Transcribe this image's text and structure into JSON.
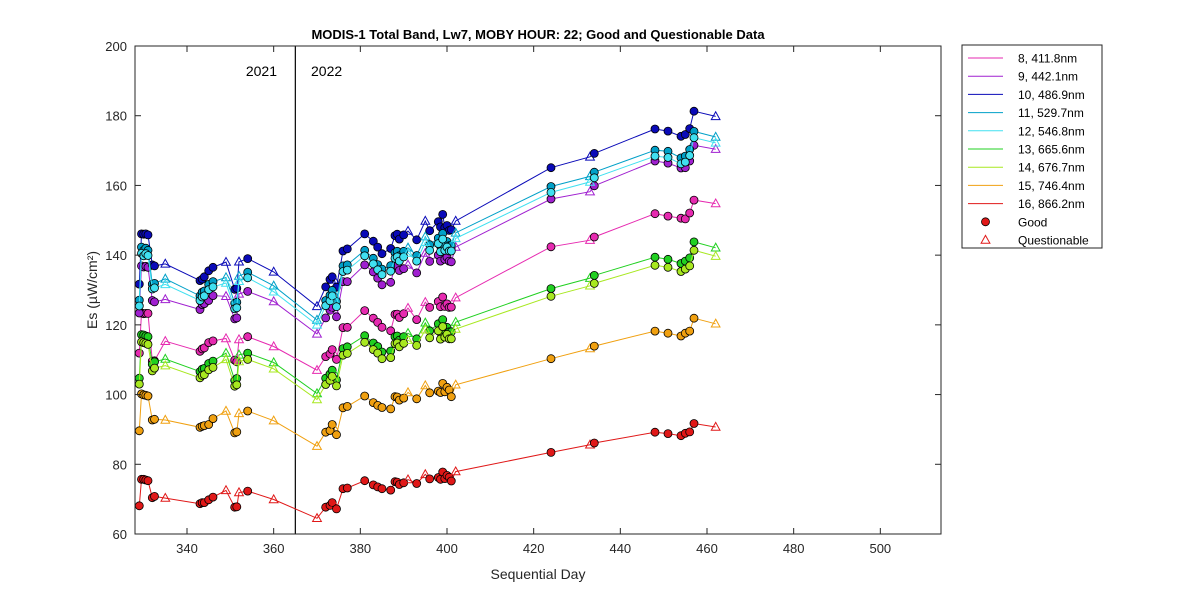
{
  "chart_data": {
    "type": "line",
    "title": "MODIS-1 Total Band,  Lw7, MOBY HOUR: 22;  Good and Questionable Data",
    "xlabel": "Sequential Day",
    "ylabel": "Es (µW/cm²)",
    "xlim": [
      328,
      514
    ],
    "ylim": [
      60,
      200
    ],
    "xticks": [
      340,
      360,
      380,
      400,
      420,
      440,
      460,
      480,
      500
    ],
    "yticks": [
      60,
      80,
      100,
      120,
      140,
      160,
      180,
      200
    ],
    "xtick_labels": [
      "340",
      "360",
      "380",
      "400",
      "420",
      "440",
      "460",
      "480",
      "500"
    ],
    "ytick_labels": [
      "60",
      "80",
      "100",
      "120",
      "140",
      "160",
      "180",
      "200"
    ],
    "grid": false,
    "legend_position": "outside-right",
    "year_divider": {
      "x": 365,
      "left_label": "2021",
      "right_label": "2022"
    },
    "x": [
      329,
      329.5,
      330,
      330.5,
      331,
      332,
      332.5,
      335,
      343,
      343.5,
      344,
      345,
      346,
      349,
      351,
      351.5,
      352,
      354,
      360,
      370,
      372,
      373,
      373.5,
      374,
      374.5,
      376,
      377,
      381,
      383,
      384,
      385,
      387,
      388,
      388.5,
      389,
      390,
      391,
      393,
      395,
      396,
      398,
      398.5,
      399,
      399.5,
      400,
      400.5,
      401,
      402,
      424,
      433,
      434,
      448,
      451,
      454,
      455,
      456,
      457,
      462
    ],
    "questionable_x": [
      335,
      349,
      352,
      360,
      370,
      374,
      391,
      395,
      402,
      433,
      462
    ],
    "series": [
      {
        "name": "8, 411.8nm",
        "color": "#e62ab0",
        "values": [
          111.9,
          123.4,
          123.2,
          123.3,
          123.3,
          109.6,
          109.7,
          115.3,
          112.4,
          113.1,
          113.4,
          114.9,
          115.4,
          116.1,
          109.9,
          109.4,
          115.8,
          116.6,
          113.8,
          107.0,
          110.9,
          111.7,
          112.9,
          111.5,
          110.1,
          119.2,
          119.3,
          124.1,
          121.9,
          120.7,
          119.3,
          118.3,
          123.0,
          123.1,
          122.1,
          123.2,
          124.8,
          121.5,
          126.5,
          125.0,
          126.7,
          125.2,
          128.0,
          125.3,
          126.0,
          125.0,
          125.1,
          127.8,
          142.4,
          144.3,
          145.2,
          151.9,
          151.2,
          150.6,
          150.4,
          152.1,
          155.8,
          154.8
        ]
      },
      {
        "name": "9, 442.1nm",
        "color": "#a020d0",
        "values": [
          123.4,
          136.9,
          136.6,
          136.8,
          136.5,
          127.0,
          126.6,
          127.3,
          124.4,
          125.8,
          126.1,
          127.0,
          128.4,
          128.2,
          121.7,
          122.0,
          128.9,
          129.6,
          126.7,
          117.4,
          122.0,
          124.2,
          125.0,
          124.2,
          122.3,
          132.4,
          132.4,
          137.2,
          135.2,
          133.4,
          131.5,
          132.2,
          136.8,
          136.9,
          135.6,
          136.1,
          137.2,
          134.9,
          140.6,
          138.2,
          140.0,
          138.3,
          141.5,
          138.8,
          139.4,
          138.3,
          138.1,
          142.3,
          156.1,
          158.2,
          159.9,
          167.0,
          166.4,
          165.0,
          165.1,
          167.0,
          171.5,
          170.4
        ]
      },
      {
        "name": "10, 486.9nm",
        "color": "#0a0ab8",
        "values": [
          131.7,
          146.1,
          146.0,
          146.1,
          145.8,
          137.2,
          136.9,
          137.5,
          132.7,
          133.1,
          133.8,
          135.5,
          136.5,
          138.0,
          130.2,
          130.5,
          138.1,
          139.0,
          135.2,
          125.3,
          130.9,
          133.0,
          133.8,
          132.9,
          130.8,
          141.2,
          141.8,
          146.1,
          144.0,
          142.3,
          140.4,
          141.9,
          145.6,
          146.0,
          144.6,
          145.8,
          146.9,
          144.4,
          149.8,
          147.0,
          149.6,
          148.1,
          151.7,
          147.9,
          148.5,
          147.1,
          147.3,
          149.8,
          165.1,
          168.2,
          169.2,
          176.2,
          175.6,
          174.1,
          174.6,
          176.3,
          181.3,
          179.8
        ]
      },
      {
        "name": "11, 529.7nm",
        "color": "#00a0c8",
        "values": [
          127.1,
          142.3,
          141.4,
          142.0,
          141.4,
          131.7,
          131.9,
          133.2,
          128.3,
          129.4,
          129.7,
          131.6,
          132.4,
          133.6,
          126.2,
          126.5,
          134.0,
          135.1,
          131.2,
          121.4,
          127.0,
          128.5,
          129.9,
          128.8,
          126.7,
          136.9,
          137.2,
          141.4,
          139.1,
          137.3,
          136.0,
          137.0,
          140.7,
          141.1,
          139.8,
          141.1,
          142.1,
          139.9,
          145.3,
          143.0,
          144.9,
          142.6,
          146.2,
          143.0,
          143.9,
          142.7,
          142.8,
          146.4,
          159.7,
          162.6,
          163.8,
          170.1,
          169.8,
          167.9,
          168.4,
          170.3,
          175.5,
          173.9
        ]
      },
      {
        "name": "12, 546.8nm",
        "color": "#40e0f0",
        "values": [
          125.4,
          140.5,
          139.8,
          140.4,
          139.9,
          130.3,
          130.6,
          131.6,
          127.0,
          128.0,
          128.3,
          130.1,
          130.9,
          132.0,
          124.6,
          124.9,
          132.5,
          133.5,
          129.5,
          120.0,
          125.5,
          126.9,
          128.3,
          127.2,
          125.2,
          135.3,
          135.7,
          139.8,
          137.5,
          135.8,
          134.4,
          135.4,
          139.1,
          139.5,
          138.3,
          139.5,
          140.6,
          138.3,
          143.7,
          141.4,
          143.3,
          141.0,
          144.6,
          141.4,
          142.3,
          141.2,
          141.2,
          144.8,
          158.0,
          161.0,
          162.2,
          168.4,
          168.0,
          166.2,
          166.7,
          168.6,
          173.7,
          172.2
        ]
      },
      {
        "name": "13, 665.6nm",
        "color": "#20d020",
        "values": [
          104.7,
          117.2,
          117.1,
          116.8,
          116.6,
          108.7,
          109.4,
          110.2,
          106.6,
          107.3,
          107.5,
          108.9,
          109.6,
          111.9,
          104.1,
          104.6,
          111.4,
          111.9,
          109.2,
          100.3,
          104.7,
          105.9,
          107.0,
          106.1,
          104.2,
          113.2,
          113.7,
          116.9,
          114.8,
          113.8,
          112.2,
          112.5,
          116.6,
          116.8,
          115.6,
          116.6,
          117.6,
          116.0,
          120.6,
          118.3,
          120.3,
          117.8,
          121.5,
          118.5,
          119.3,
          118.0,
          118.0,
          120.8,
          130.4,
          133.4,
          134.2,
          139.4,
          138.8,
          137.6,
          138.3,
          139.2,
          143.8,
          142.1
        ]
      },
      {
        "name": "14, 676.7nm",
        "color": "#a8e820",
        "values": [
          103.0,
          115.1,
          114.9,
          114.7,
          114.4,
          106.8,
          107.6,
          108.3,
          104.8,
          105.5,
          105.7,
          107.1,
          107.8,
          110.1,
          102.4,
          102.8,
          109.5,
          110.1,
          107.4,
          98.6,
          102.9,
          104.1,
          105.2,
          104.3,
          102.5,
          111.3,
          111.8,
          115.0,
          112.9,
          111.9,
          110.3,
          110.6,
          114.6,
          114.8,
          113.7,
          114.7,
          115.6,
          114.1,
          118.6,
          116.3,
          118.3,
          115.9,
          119.5,
          116.5,
          117.3,
          116.0,
          116.0,
          118.8,
          128.2,
          131.2,
          131.9,
          137.1,
          136.5,
          135.3,
          136.0,
          136.9,
          141.4,
          139.7
        ]
      },
      {
        "name": "15, 746.4nm",
        "color": "#f0a010",
        "values": [
          89.6,
          100.2,
          99.9,
          99.8,
          99.6,
          92.7,
          92.9,
          92.7,
          90.6,
          90.9,
          91.1,
          91.4,
          93.1,
          95.3,
          89.0,
          89.3,
          94.6,
          95.3,
          92.5,
          85.2,
          89.2,
          89.7,
          91.4,
          90.3,
          88.5,
          96.2,
          96.6,
          99.6,
          97.7,
          96.9,
          96.3,
          95.9,
          99.4,
          99.3,
          98.4,
          99.0,
          100.6,
          98.8,
          102.6,
          100.5,
          101.0,
          100.6,
          103.2,
          100.8,
          102.1,
          101.3,
          99.4,
          102.8,
          110.3,
          113.2,
          113.9,
          118.2,
          117.6,
          116.8,
          117.6,
          118.2,
          121.9,
          120.3
        ]
      },
      {
        "name": "16, 866.2nm",
        "color": "#e01818",
        "values": [
          68.1,
          75.7,
          75.7,
          75.5,
          75.3,
          70.4,
          70.8,
          70.3,
          68.7,
          69.0,
          69.0,
          69.8,
          70.6,
          72.5,
          67.7,
          67.8,
          71.9,
          72.3,
          69.9,
          64.5,
          67.7,
          68.2,
          69.0,
          68.3,
          67.2,
          73.0,
          73.2,
          75.3,
          74.1,
          73.5,
          73.0,
          72.6,
          75.0,
          74.9,
          74.2,
          74.7,
          75.6,
          74.5,
          77.1,
          75.8,
          76.2,
          75.7,
          77.8,
          75.9,
          76.8,
          76.3,
          75.2,
          77.9,
          83.4,
          85.6,
          86.1,
          89.2,
          88.8,
          88.2,
          88.9,
          89.3,
          91.7,
          90.7
        ]
      }
    ],
    "legend_markers": [
      {
        "name": "Good",
        "shape": "circle",
        "color": "#e01818"
      },
      {
        "name": "Questionable",
        "shape": "triangle",
        "color": "#e01818"
      }
    ]
  }
}
